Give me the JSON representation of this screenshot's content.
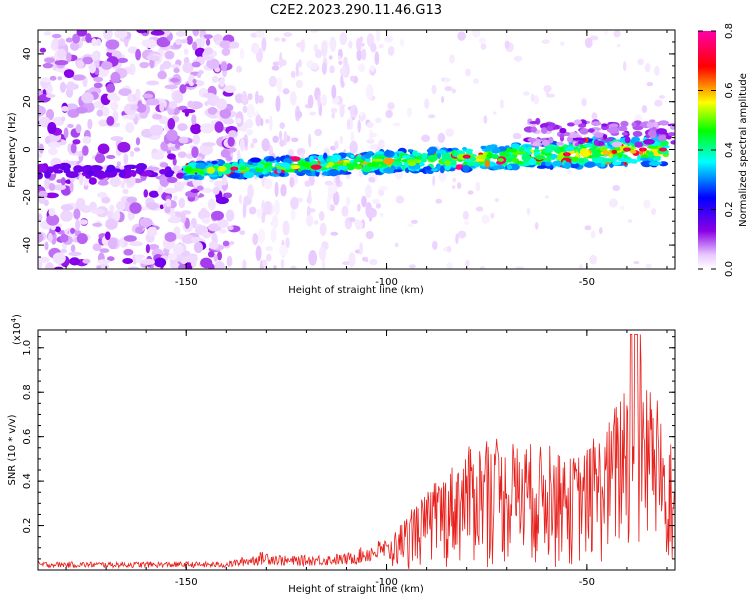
{
  "title": "C2E2.2023.290.11.46.G13",
  "spectrogram": {
    "type": "heatmap",
    "xlabel": "Height of straight line (km)",
    "ylabel": "Frequency (Hz)",
    "xlim": [
      -187,
      -28
    ],
    "ylim": [
      -50,
      50
    ],
    "xticks": [
      -150,
      -100,
      -50
    ],
    "xtick_labels": [
      "-150",
      "-100",
      "-50"
    ],
    "yticks": [
      -40,
      -20,
      0,
      20,
      40
    ],
    "ytick_labels": [
      "-40",
      "-20",
      "0",
      "20",
      "40"
    ],
    "colorbar": {
      "label": "Normalized spectral amplitude",
      "range": [
        0,
        0.8
      ],
      "ticks": [
        0.0,
        0.2,
        0.4,
        0.6,
        0.8
      ],
      "tick_labels": [
        "0.0",
        "0.2",
        "0.4",
        "0.6",
        "0.8"
      ],
      "colors": [
        "#ffffff",
        "#e8c8ff",
        "#8a00e6",
        "#0000ff",
        "#00ffff",
        "#00ff00",
        "#ffff00",
        "#ff0000",
        "#ff00aa"
      ]
    },
    "ridge": {
      "description_values": "dominant frequency ridge from about -9 Hz at -150 km to about 0 Hz at -30 km",
      "start": [
        -150,
        -9
      ],
      "end": [
        -30,
        0
      ],
      "peak_amplitude": 0.75
    }
  },
  "snr": {
    "type": "line",
    "xlabel": "Height of straight line (km)",
    "ylabel": "SNR (10 * v/v)",
    "scale_label": "(x10",
    "scale_exp": "4",
    "scale_close": ")",
    "xlim": [
      -187,
      -28
    ],
    "ylim": [
      0,
      1.08
    ],
    "xticks": [
      -150,
      -100,
      -50
    ],
    "xtick_labels": [
      "-150",
      "-100",
      "-50"
    ],
    "yticks": [
      0.2,
      0.4,
      0.6,
      0.8,
      1.0
    ],
    "ytick_labels": [
      "0.2",
      "0.4",
      "0.6",
      "0.8",
      "1.0"
    ],
    "series_color": "#e8201c",
    "envelope": [
      [
        -187,
        0.03
      ],
      [
        -140,
        0.03
      ],
      [
        -135,
        0.05
      ],
      [
        -130,
        0.07
      ],
      [
        -125,
        0.05
      ],
      [
        -110,
        0.06
      ],
      [
        -105,
        0.09
      ],
      [
        -100,
        0.12
      ],
      [
        -95,
        0.25
      ],
      [
        -90,
        0.35
      ],
      [
        -85,
        0.45
      ],
      [
        -80,
        0.55
      ],
      [
        -75,
        0.6
      ],
      [
        -70,
        0.55
      ],
      [
        -65,
        0.58
      ],
      [
        -60,
        0.55
      ],
      [
        -55,
        0.5
      ],
      [
        -50,
        0.55
      ],
      [
        -45,
        0.65
      ],
      [
        -42,
        0.8
      ],
      [
        -40,
        0.95
      ],
      [
        -38,
        1.0
      ],
      [
        -35,
        0.9
      ],
      [
        -32,
        0.7
      ],
      [
        -28,
        0.5
      ]
    ]
  }
}
